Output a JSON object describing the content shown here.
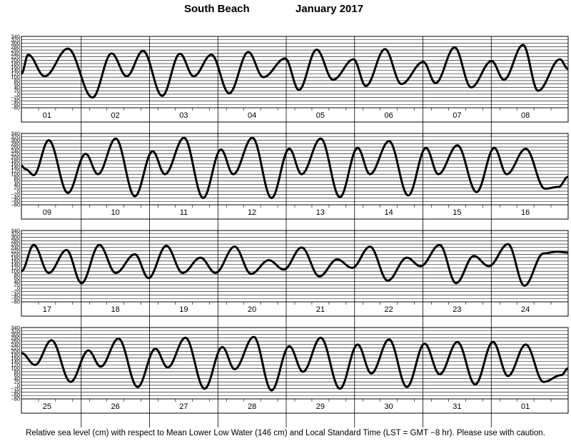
{
  "header": {
    "station": "South Beach",
    "month_year": "January   2017"
  },
  "footnote": "Relative sea level (cm) with respect to Mean Lower Low Water (146 cm) and Local Standard Time (LST = GMT −8 hr). Please use with caution.",
  "chart_data": {
    "type": "line",
    "title": "South Beach January 2017",
    "xlabel": "",
    "ylabel": "",
    "y_ticks": [
      340,
      320,
      300,
      280,
      260,
      240,
      220,
      200,
      180,
      160,
      140,
      120,
      100,
      80,
      60,
      40,
      20,
      0,
      "−20",
      "−40",
      "−60",
      "−80"
    ],
    "ylim": [
      -80,
      340
    ],
    "grid": true,
    "line_color": "#000000",
    "panels": [
      {
        "day_labels": [
          "01",
          "02",
          "03",
          "04",
          "05",
          "06",
          "07",
          "08"
        ],
        "extrema": [
          [
            0,
            120
          ],
          [
            0.5,
            232
          ],
          [
            1.7,
            105
          ],
          [
            3.4,
            268
          ],
          [
            5.2,
            -20
          ],
          [
            6.6,
            240
          ],
          [
            7.7,
            105
          ],
          [
            8.9,
            255
          ],
          [
            10.3,
            -10
          ],
          [
            11.6,
            238
          ],
          [
            12.6,
            105
          ],
          [
            13.9,
            232
          ],
          [
            15.2,
            5
          ],
          [
            16.6,
            248
          ],
          [
            17.7,
            100
          ],
          [
            19.3,
            210
          ],
          [
            20.3,
            25
          ],
          [
            21.6,
            262
          ],
          [
            22.8,
            85
          ],
          [
            24.3,
            205
          ],
          [
            25.2,
            48
          ],
          [
            26.6,
            265
          ],
          [
            27.8,
            60
          ],
          [
            29.4,
            190
          ],
          [
            30.3,
            65
          ],
          [
            31.7,
            275
          ],
          [
            32.9,
            40
          ],
          [
            34.4,
            195
          ],
          [
            35.3,
            85
          ],
          [
            36.7,
            290
          ],
          [
            37.8,
            20
          ],
          [
            39.4,
            205
          ],
          [
            40,
            148
          ]
        ]
      },
      {
        "day_labels": [
          "09",
          "10",
          "11",
          "12",
          "13",
          "14",
          "15",
          "16"
        ],
        "extrema": [
          [
            0,
            150
          ],
          [
            0.3,
            130
          ],
          [
            0.9,
            95
          ],
          [
            2.0,
            300
          ],
          [
            3.4,
            -10
          ],
          [
            4.7,
            220
          ],
          [
            5.6,
            100
          ],
          [
            6.9,
            310
          ],
          [
            8.3,
            -30
          ],
          [
            9.6,
            235
          ],
          [
            10.5,
            100
          ],
          [
            11.9,
            315
          ],
          [
            13.3,
            -40
          ],
          [
            14.6,
            245
          ],
          [
            15.5,
            100
          ],
          [
            16.9,
            315
          ],
          [
            18.3,
            -40
          ],
          [
            19.6,
            250
          ],
          [
            20.5,
            100
          ],
          [
            21.9,
            310
          ],
          [
            23.3,
            -35
          ],
          [
            24.6,
            255
          ],
          [
            25.5,
            100
          ],
          [
            26.9,
            295
          ],
          [
            28.3,
            -25
          ],
          [
            29.6,
            255
          ],
          [
            30.5,
            100
          ],
          [
            31.9,
            270
          ],
          [
            33.3,
            -5
          ],
          [
            34.6,
            255
          ],
          [
            35.5,
            100
          ],
          [
            36.9,
            250
          ],
          [
            38.3,
            15
          ],
          [
            39.3,
            25
          ],
          [
            40,
            85
          ]
        ]
      },
      {
        "day_labels": [
          "17",
          "18",
          "19",
          "20",
          "21",
          "22",
          "23",
          "24"
        ],
        "extrema": [
          [
            0,
            100
          ],
          [
            0.9,
            255
          ],
          [
            2.0,
            90
          ],
          [
            3.3,
            225
          ],
          [
            4.4,
            30
          ],
          [
            5.7,
            255
          ],
          [
            6.9,
            90
          ],
          [
            8.3,
            200
          ],
          [
            9.3,
            60
          ],
          [
            10.6,
            250
          ],
          [
            11.8,
            90
          ],
          [
            13.1,
            180
          ],
          [
            14.2,
            90
          ],
          [
            15.6,
            245
          ],
          [
            16.8,
            85
          ],
          [
            18.1,
            165
          ],
          [
            19.2,
            110
          ],
          [
            20.5,
            240
          ],
          [
            21.8,
            70
          ],
          [
            23.1,
            170
          ],
          [
            24.2,
            120
          ],
          [
            25.5,
            245
          ],
          [
            26.8,
            45
          ],
          [
            28.2,
            180
          ],
          [
            29.2,
            130
          ],
          [
            30.6,
            255
          ],
          [
            31.8,
            30
          ],
          [
            33.1,
            190
          ],
          [
            34.2,
            130
          ],
          [
            35.6,
            260
          ],
          [
            36.8,
            15
          ],
          [
            38.2,
            205
          ],
          [
            39.2,
            215
          ],
          [
            40,
            210
          ]
        ]
      },
      {
        "day_labels": [
          "25",
          "26",
          "27",
          "28",
          "29",
          "30",
          "31",
          "01"
        ],
        "extrema": [
          [
            0,
            190
          ],
          [
            1.0,
            120
          ],
          [
            2.2,
            265
          ],
          [
            3.6,
            20
          ],
          [
            4.9,
            205
          ],
          [
            5.8,
            110
          ],
          [
            7.1,
            275
          ],
          [
            8.5,
            -10
          ],
          [
            9.8,
            215
          ],
          [
            10.7,
            105
          ],
          [
            12.0,
            280
          ],
          [
            13.4,
            -20
          ],
          [
            14.7,
            225
          ],
          [
            15.6,
            95
          ],
          [
            17.0,
            285
          ],
          [
            18.3,
            -30
          ],
          [
            19.6,
            230
          ],
          [
            20.6,
            80
          ],
          [
            21.9,
            280
          ],
          [
            23.3,
            -20
          ],
          [
            24.6,
            240
          ],
          [
            25.6,
            70
          ],
          [
            26.9,
            270
          ],
          [
            28.2,
            -10
          ],
          [
            29.5,
            245
          ],
          [
            30.6,
            65
          ],
          [
            31.9,
            255
          ],
          [
            33.2,
            5
          ],
          [
            34.5,
            255
          ],
          [
            35.6,
            55
          ],
          [
            36.9,
            240
          ],
          [
            38.2,
            20
          ],
          [
            39.5,
            60
          ],
          [
            40,
            100
          ]
        ]
      }
    ]
  }
}
